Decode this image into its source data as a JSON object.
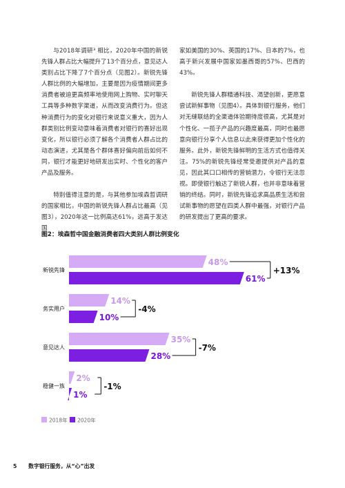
{
  "text": {
    "left_p1": "与2018年调研³ 相比，2020年中国的新锐先锋人群占比大幅提升了13个百分点，意见达人类别占比下降了7个百分点（见图2）。新锐先锋人群比例的大幅增加，主要是因为疫情期间更多消费者被迫更高频率地使用网上购物、实时聊天工具等多种数字渠道，从而改变消费行为。但这种消费行为的变化对银行来说意义重大，因为人群类别比例变动意味着消费者对银行的喜好出现变化，所以银行必须了解各个消费者人群占比的动态演进，尤其是各个群体喜好偏向前后如何不同，银行才能更好地研发出实时、个性化的客户产品及服务。",
    "left_p2": "特别值得注意的是，与其他参加埃森哲调研的国家相比，中国的新锐先锋人群占比最高（见图3），2020年这一比例高达61%，远高于发达国",
    "right_p1": "家如美国的30%、英国的17%、日本的7%，也高于新兴发展中国家如墨西哥的57%、巴西的43%。",
    "right_p2": "新锐先锋人群精通科技、渴望创新，更愿意尝试新鲜事物（见图4）。具体到银行服务，他们对无缝联结的全渠道体验期待度很高，尤其是对个性化、一揽子产品的兴趣度最高，同时也最愿意向银行分享个人信息以此来获得更加个性化的服务。此外，新锐先锋鲜明的生活方式也值得关注。75%的新锐先锋经常受邀提供对产品的意见，因此其口口相传的营销潜力，令银行无法忽视。即使银行触达了新锐人群，也并非意味着营销的终结。同时，新锐先锋追求高品质生活和尝试新事物的愿望在四类人群中最强，对银行产品的研发提出了更高的要求。"
  },
  "figure": {
    "title": "图2：埃森哲中国金融消费者四大类别人群比例变化"
  },
  "colors": {
    "light": "#d6abf5",
    "dark": "#7d1fe0",
    "light_text": "#c79ae9",
    "dark_text": "#7617d6"
  },
  "chart_data": {
    "type": "bar",
    "orientation": "horizontal",
    "categories": [
      "新锐先锋",
      "务实用户",
      "意见达人",
      "稳健一族"
    ],
    "series": [
      {
        "name": "2018年",
        "values": [
          48,
          14,
          35,
          2
        ]
      },
      {
        "name": "2020年",
        "values": [
          61,
          10,
          28,
          1
        ]
      }
    ],
    "value_labels_2018": [
      "48%",
      "14%",
      "35%",
      "2%"
    ],
    "value_labels_2020": [
      "61%",
      "10%",
      "28%",
      "1%"
    ],
    "changes": [
      "+13%",
      "-4%",
      "-7%",
      "-1%"
    ],
    "legend_position": "bottom-left",
    "grid": false
  },
  "footer": {
    "page_number": "5",
    "title": "数字银行服务，从“心”出发"
  }
}
